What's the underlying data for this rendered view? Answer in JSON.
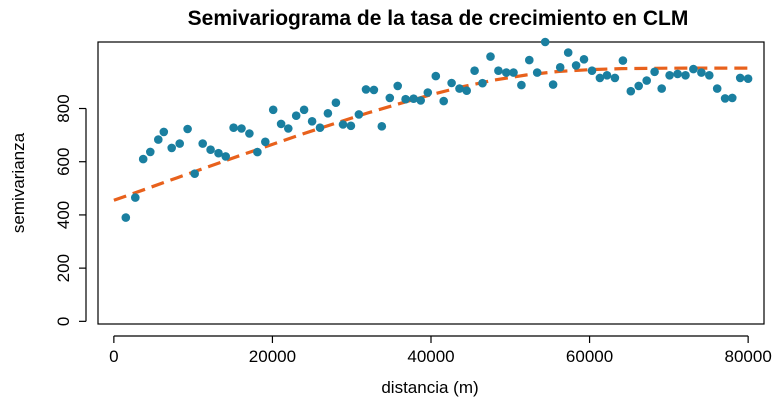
{
  "chart_data": {
    "type": "scatter",
    "title": "Semivariograma de la tasa de crecimiento en CLM",
    "xlabel": "distancia (m)",
    "ylabel": "semivarianza",
    "xlim": [
      -2000,
      82000
    ],
    "ylim": [
      -10,
      1050
    ],
    "xticks": [
      0,
      20000,
      40000,
      60000,
      80000
    ],
    "yticks": [
      0,
      200,
      400,
      600,
      800
    ],
    "grid": false,
    "legend": "none",
    "points_color": "#1a7fa0",
    "fit_color": "#e8611c",
    "series": [
      {
        "kind": "points",
        "x": [
          1500,
          2700,
          3700,
          4600,
          5600,
          6300,
          7300,
          8300,
          9300,
          10200,
          11200,
          12200,
          13200,
          14100,
          15100,
          16100,
          17100,
          18100,
          19100,
          20100,
          21100,
          22000,
          23000,
          24000,
          25000,
          26000,
          27000,
          28000,
          28900,
          29900,
          30900,
          31800,
          32800,
          33800,
          34800,
          35800,
          36800,
          37800,
          38700,
          39600,
          40600,
          41600,
          42600,
          43600,
          44500,
          45500,
          46500,
          47500,
          48500,
          49500,
          50400,
          51400,
          52400,
          53400,
          54400,
          55400,
          56300,
          57300,
          58300,
          59300,
          60300,
          61300,
          62200,
          63200,
          64200,
          65200,
          66200,
          67200,
          68200,
          69100,
          70100,
          71100,
          72100,
          73100,
          74100,
          75100,
          76100,
          77100,
          78000,
          79000,
          80000
        ],
        "y": [
          390,
          465,
          610,
          637,
          683,
          712,
          652,
          668,
          723,
          555,
          668,
          645,
          632,
          620,
          728,
          725,
          706,
          636,
          675,
          795,
          742,
          725,
          773,
          795,
          752,
          728,
          782,
          822,
          740,
          735,
          778,
          872,
          870,
          733,
          840,
          885,
          835,
          837,
          830,
          860,
          922,
          828,
          896,
          875,
          867,
          942,
          895,
          995,
          942,
          935,
          935,
          888,
          982,
          935,
          1050,
          890,
          955,
          1010,
          962,
          985,
          942,
          915,
          925,
          915,
          980,
          865,
          885,
          905,
          938,
          875,
          925,
          930,
          925,
          948,
          935,
          925,
          875,
          838,
          840,
          915,
          912
        ]
      },
      {
        "kind": "fitted-model",
        "x": [
          0,
          4000,
          8000,
          12000,
          16000,
          20000,
          24000,
          28000,
          32000,
          36000,
          40000,
          44000,
          48000,
          52000,
          56000,
          60000,
          64000,
          68000,
          72000,
          76000,
          80000
        ],
        "y": [
          455,
          497,
          540,
          582,
          624,
          665,
          706,
          745,
          783,
          818,
          852,
          882,
          907,
          926,
          939,
          946,
          950,
          951,
          952,
          952,
          952
        ]
      }
    ]
  }
}
